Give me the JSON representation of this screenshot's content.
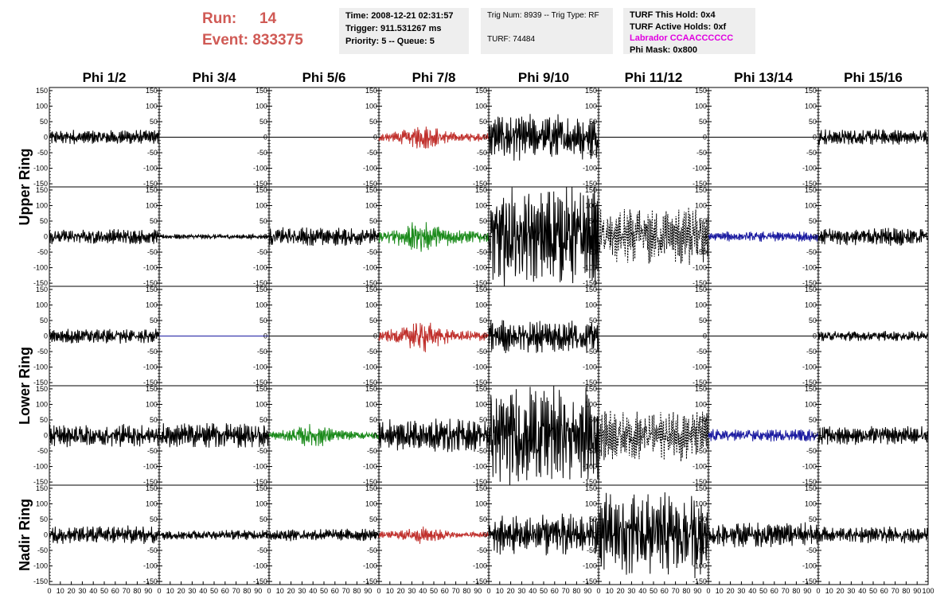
{
  "header": {
    "run_label": "Run:",
    "run_value": "14",
    "event_label": "Event:",
    "event_value": "833375",
    "box1": [
      "Time: 2008-12-21 02:31:57",
      "Trigger: 911.531267 ms",
      "Priority: 5 -- Queue: 5"
    ],
    "box2": [
      "Trig Num: 8939 -- Trig Type: RF",
      "TURF: 74484"
    ],
    "box3": [
      "TURF This Hold: 0x4",
      "TURF Active Holds: 0xf",
      "Labrador CCAACCCCCC",
      "Phi Mask: 0x800"
    ]
  },
  "colors": {
    "title": "#d05a55",
    "magenta": "#e000e0",
    "red": "#c0302c",
    "green": "#1a8a1a",
    "blue": "#1a1aa0",
    "black": "#000000"
  },
  "chart_data": {
    "type": "line",
    "columns": [
      "Phi 1/2",
      "Phi 3/4",
      "Phi 5/6",
      "Phi 7/8",
      "Phi 9/10",
      "Phi 11/12",
      "Phi 13/14",
      "Phi 15/16"
    ],
    "ring_labels": [
      "Upper Ring",
      "Lower Ring",
      "Nadir Ring"
    ],
    "xlim": [
      0,
      100
    ],
    "ylim": [
      -160,
      160
    ],
    "x_ticks": [
      "0",
      "10",
      "20",
      "30",
      "40",
      "50",
      "60",
      "70",
      "80",
      "90",
      "100"
    ],
    "y_ticks": [
      "150",
      "100",
      "50",
      "0",
      "-50",
      "-100",
      "-150"
    ],
    "panels": [
      [
        {
          "color": "black",
          "amp": 18,
          "style": "solid"
        },
        {
          "color": "black",
          "amp": 0,
          "style": "solid"
        },
        {
          "color": "black",
          "amp": 0,
          "style": "solid"
        },
        {
          "color": "red",
          "amp": 30,
          "style": "solid"
        },
        {
          "color": "black",
          "amp": 55,
          "style": "solid"
        },
        {
          "color": "black",
          "amp": 0,
          "style": "solid"
        },
        {
          "color": "black",
          "amp": 0,
          "style": "solid"
        },
        {
          "color": "black",
          "amp": 20,
          "style": "solid"
        }
      ],
      [
        {
          "color": "black",
          "amp": 18,
          "style": "solid"
        },
        {
          "color": "black",
          "amp": 6,
          "style": "solid"
        },
        {
          "color": "black",
          "amp": 22,
          "style": "solid"
        },
        {
          "color": "green",
          "amp": 45,
          "style": "solid"
        },
        {
          "color": "black",
          "amp": 120,
          "style": "solid"
        },
        {
          "color": "black",
          "amp": 70,
          "style": "dashed"
        },
        {
          "color": "blue",
          "amp": 12,
          "style": "solid"
        },
        {
          "color": "black",
          "amp": 22,
          "style": "solid"
        }
      ],
      [
        {
          "color": "black",
          "amp": 18,
          "style": "solid"
        },
        {
          "color": "blue",
          "amp": 0,
          "style": "solid"
        },
        {
          "color": "black",
          "amp": 0,
          "style": "solid"
        },
        {
          "color": "red",
          "amp": 40,
          "style": "solid"
        },
        {
          "color": "black",
          "amp": 40,
          "style": "solid"
        },
        {
          "color": "black",
          "amp": 0,
          "style": "solid"
        },
        {
          "color": "black",
          "amp": 0,
          "style": "solid"
        },
        {
          "color": "black",
          "amp": 12,
          "style": "solid"
        }
      ],
      [
        {
          "color": "black",
          "amp": 28,
          "style": "solid"
        },
        {
          "color": "black",
          "amp": 30,
          "style": "solid"
        },
        {
          "color": "green",
          "amp": 30,
          "style": "solid"
        },
        {
          "color": "black",
          "amp": 40,
          "style": "solid"
        },
        {
          "color": "black",
          "amp": 120,
          "style": "solid"
        },
        {
          "color": "black",
          "amp": 60,
          "style": "dashed"
        },
        {
          "color": "blue",
          "amp": 15,
          "style": "solid"
        },
        {
          "color": "black",
          "amp": 22,
          "style": "solid"
        }
      ],
      [
        {
          "color": "black",
          "amp": 22,
          "style": "solid"
        },
        {
          "color": "black",
          "amp": 12,
          "style": "solid"
        },
        {
          "color": "black",
          "amp": 15,
          "style": "solid"
        },
        {
          "color": "red",
          "amp": 22,
          "style": "solid"
        },
        {
          "color": "black",
          "amp": 50,
          "style": "solid"
        },
        {
          "color": "black",
          "amp": 100,
          "style": "solid"
        },
        {
          "color": "black",
          "amp": 30,
          "style": "solid"
        },
        {
          "color": "black",
          "amp": 20,
          "style": "solid"
        }
      ]
    ]
  }
}
